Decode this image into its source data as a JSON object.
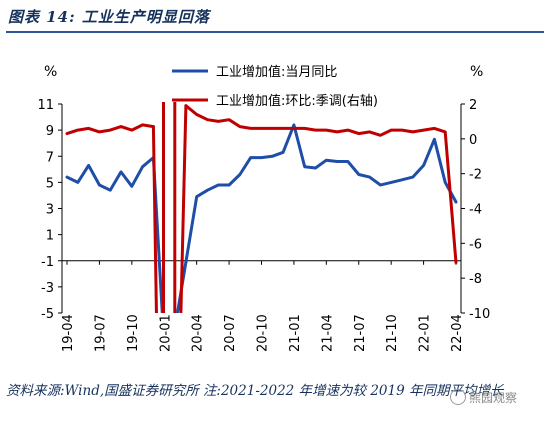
{
  "figure": {
    "title": "图表 14:  工业生产明显回落",
    "source": "资料来源:Wind,国盛证券研究所   注:2021-2022 年增速为较 2019 年同期平均增长",
    "watermark": "熊园观察"
  },
  "colors": {
    "series1": "#1f4ea8",
    "series2": "#c00000",
    "axis": "#000000",
    "text": "#16325c"
  },
  "chart_data": {
    "type": "line",
    "left_unit": "%",
    "right_unit": "%",
    "left_ylim": [
      -5,
      11
    ],
    "left_ticks": [
      11,
      9,
      7,
      5,
      3,
      1,
      -1,
      -3,
      -5
    ],
    "right_ylim": [
      -10,
      2
    ],
    "right_ticks": [
      2,
      0,
      -2,
      -4,
      -6,
      -8,
      -10
    ],
    "x_tick_labels": [
      "19-04",
      "19-07",
      "19-10",
      "20-01",
      "20-04",
      "20-07",
      "20-10",
      "21-01",
      "21-04",
      "21-07",
      "21-10",
      "22-01",
      "22-04"
    ],
    "x_tick_index": [
      0,
      3,
      6,
      9,
      12,
      15,
      18,
      21,
      24,
      27,
      30,
      33,
      36
    ],
    "legend_position": "top",
    "series": [
      {
        "name": "工业增加值:当月同比",
        "axis": "left",
        "color": "#1f4ea8",
        "values": [
          5.4,
          5.0,
          6.3,
          4.8,
          4.4,
          5.8,
          4.7,
          6.2,
          6.9,
          null,
          null,
          -1.1,
          3.9,
          4.4,
          4.8,
          4.8,
          5.6,
          6.9,
          6.9,
          7.0,
          7.3,
          9.4,
          6.2,
          6.1,
          6.7,
          6.6,
          6.6,
          5.6,
          5.4,
          4.8,
          5.0,
          5.2,
          5.4,
          6.3,
          8.3,
          5.0,
          3.5
        ],
        "breaks": [
          {
            "start": 8,
            "end": 11,
            "note": "falls below axis minimum"
          }
        ]
      },
      {
        "name": "工业增加值:环比:季调(右轴)",
        "axis": "right",
        "color": "#c00000",
        "values": [
          0.3,
          0.5,
          0.6,
          0.4,
          0.5,
          0.7,
          0.5,
          0.8,
          0.7,
          null,
          null,
          1.9,
          1.4,
          1.1,
          1.0,
          1.1,
          0.7,
          0.6,
          0.6,
          0.6,
          0.6,
          0.6,
          0.6,
          0.5,
          0.5,
          0.4,
          0.5,
          0.3,
          0.4,
          0.2,
          0.5,
          0.5,
          0.4,
          0.5,
          0.6,
          0.4,
          -7.1
        ],
        "breaks": [
          {
            "start": 8,
            "end": 11,
            "note": "spike beyond axis range"
          }
        ]
      }
    ]
  }
}
